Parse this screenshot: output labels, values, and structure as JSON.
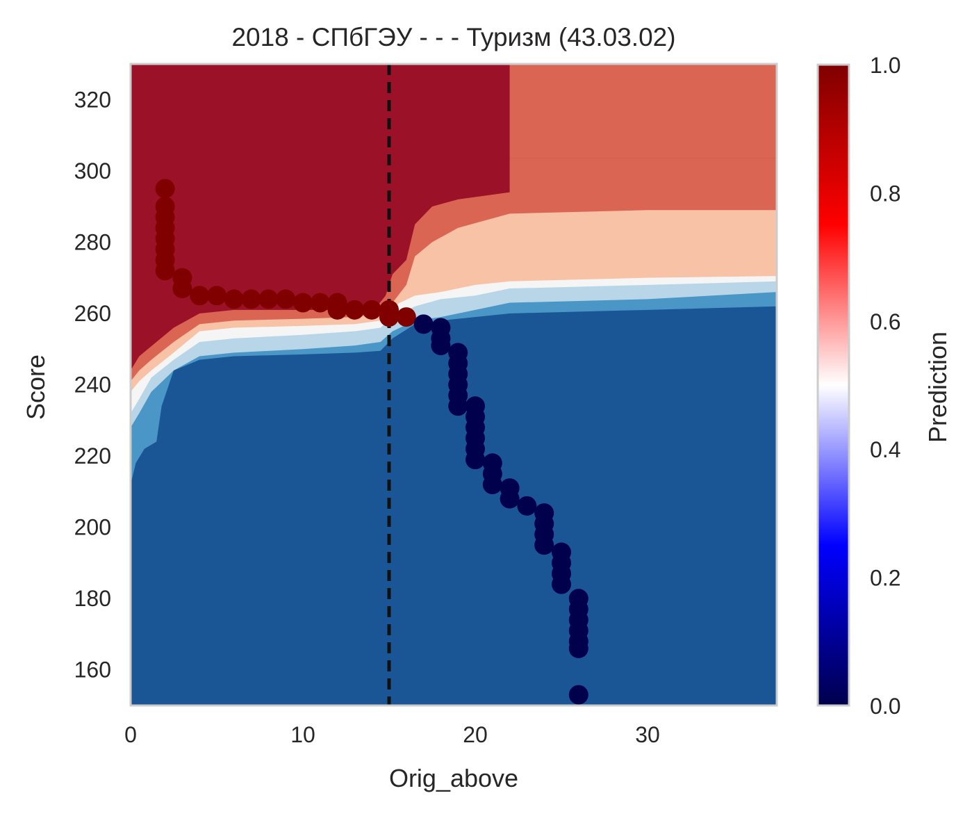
{
  "chart_data": {
    "type": "scatter",
    "title": "2018 - СПбГЭУ - - - Туризм (43.03.02)",
    "xlabel": "Orig_above",
    "ylabel": "Score",
    "xlim": [
      0,
      37.5
    ],
    "ylim": [
      150,
      330
    ],
    "xticks": [
      0,
      10,
      20,
      30
    ],
    "yticks": [
      160,
      180,
      200,
      220,
      240,
      260,
      280,
      300,
      320
    ],
    "vline_x": 15,
    "colorbar": {
      "label": "Prediction",
      "range": [
        0.0,
        1.0
      ],
      "ticks": [
        "0.0",
        "0.2",
        "0.4",
        "0.6",
        "0.8",
        "1.0"
      ],
      "cmap": [
        "#00004c",
        "#0000ff",
        "#ffffff",
        "#ff0000",
        "#800000"
      ]
    },
    "contour_colors": {
      "level_0": "#1a5696",
      "level_1": "#4a97c7",
      "level_2": "#b8d6e8",
      "level_3": "#f5f5f5",
      "level_4": "#f8c2a7",
      "level_5": "#db6553",
      "level_6": "#9b1228"
    },
    "point_colors": {
      "positive": "#800000",
      "negative": "#00004c"
    },
    "series": [
      {
        "label": 1,
        "points": [
          [
            2,
            295
          ],
          [
            2,
            290
          ],
          [
            2,
            287
          ],
          [
            2,
            284
          ],
          [
            2,
            281
          ],
          [
            2,
            278
          ],
          [
            2,
            275
          ],
          [
            2,
            272
          ],
          [
            3,
            270
          ],
          [
            3,
            267
          ],
          [
            4,
            265
          ],
          [
            5,
            265
          ],
          [
            6,
            264
          ],
          [
            7,
            264
          ],
          [
            8,
            264
          ],
          [
            9,
            264
          ],
          [
            10,
            263
          ],
          [
            11,
            263
          ],
          [
            12,
            263
          ],
          [
            12,
            261
          ],
          [
            13,
            261
          ],
          [
            14,
            261
          ],
          [
            15,
            261
          ],
          [
            15,
            259
          ],
          [
            16,
            259
          ]
        ]
      },
      {
        "label": 0,
        "points": [
          [
            17,
            257
          ],
          [
            18,
            256
          ],
          [
            18,
            253
          ],
          [
            18,
            251
          ],
          [
            19,
            249
          ],
          [
            19,
            246
          ],
          [
            19,
            243
          ],
          [
            19,
            240
          ],
          [
            19,
            237
          ],
          [
            19,
            234
          ],
          [
            20,
            234
          ],
          [
            20,
            231
          ],
          [
            20,
            228
          ],
          [
            20,
            225
          ],
          [
            20,
            222
          ],
          [
            20,
            219
          ],
          [
            21,
            218
          ],
          [
            21,
            215
          ],
          [
            21,
            212
          ],
          [
            22,
            211
          ],
          [
            22,
            208
          ],
          [
            23,
            206
          ],
          [
            24,
            204
          ],
          [
            24,
            201
          ],
          [
            24,
            198
          ],
          [
            24,
            195
          ],
          [
            25,
            193
          ],
          [
            25,
            190
          ],
          [
            25,
            187
          ],
          [
            25,
            184
          ],
          [
            26,
            180
          ],
          [
            26,
            177
          ],
          [
            26,
            174
          ],
          [
            26,
            171
          ],
          [
            26,
            168
          ],
          [
            26,
            166
          ],
          [
            26,
            153
          ]
        ]
      }
    ]
  }
}
